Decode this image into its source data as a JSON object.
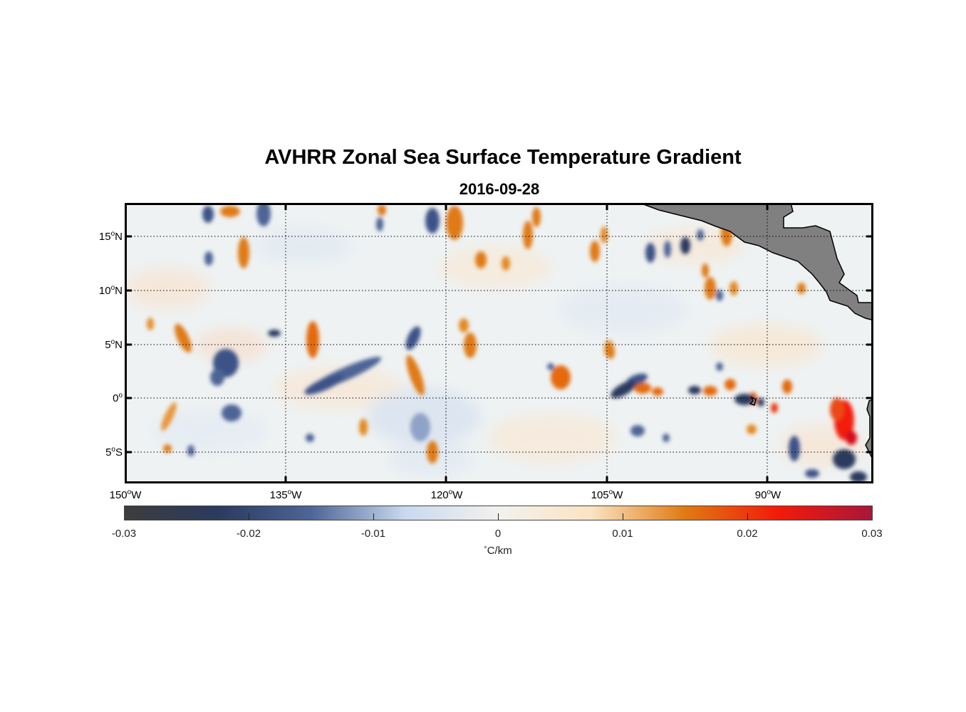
{
  "title": "AVHRR Zonal Sea Surface Temperature Gradient",
  "subtitle": "2016-09-28",
  "map": {
    "lon_range": [
      -150,
      -80
    ],
    "lat_range": [
      -8,
      18
    ],
    "y_ticks": [
      {
        "value": 15,
        "num": "15",
        "deg": "o",
        "hemi": "N"
      },
      {
        "value": 10,
        "num": "10",
        "deg": "o",
        "hemi": "N"
      },
      {
        "value": 5,
        "num": "5",
        "deg": "o",
        "hemi": "N"
      },
      {
        "value": 0,
        "num": "0",
        "deg": "o",
        "hemi": ""
      },
      {
        "value": -5,
        "num": "5",
        "deg": "o",
        "hemi": "S"
      }
    ],
    "x_ticks": [
      {
        "value": -150,
        "num": "150",
        "deg": "o",
        "hemi": "W"
      },
      {
        "value": -135,
        "num": "135",
        "deg": "o",
        "hemi": "W"
      },
      {
        "value": -120,
        "num": "120",
        "deg": "o",
        "hemi": "W"
      },
      {
        "value": -105,
        "num": "105",
        "deg": "o",
        "hemi": "W"
      },
      {
        "value": -90,
        "num": "90",
        "deg": "o",
        "hemi": "W"
      }
    ],
    "grid": "dotted",
    "land_color": "#808080"
  },
  "colorbar": {
    "range": [
      -0.03,
      0.03
    ],
    "ticks": [
      {
        "value": -0.03,
        "label": "-0.03"
      },
      {
        "value": -0.02,
        "label": "-0.02"
      },
      {
        "value": -0.01,
        "label": "-0.01"
      },
      {
        "value": 0,
        "label": "0"
      },
      {
        "value": 0.01,
        "label": "0.01"
      },
      {
        "value": 0.02,
        "label": "0.02"
      },
      {
        "value": 0.03,
        "label": "0.03"
      }
    ],
    "colors": [
      "#3d3d3d",
      "#2b3a5e",
      "#4e6596",
      "#c9d9ef",
      "#f2f2ee",
      "#fbe3c2",
      "#e07a12",
      "#f31a0a",
      "#a9163a"
    ],
    "units_deg": "°",
    "units_text": "C/km"
  }
}
